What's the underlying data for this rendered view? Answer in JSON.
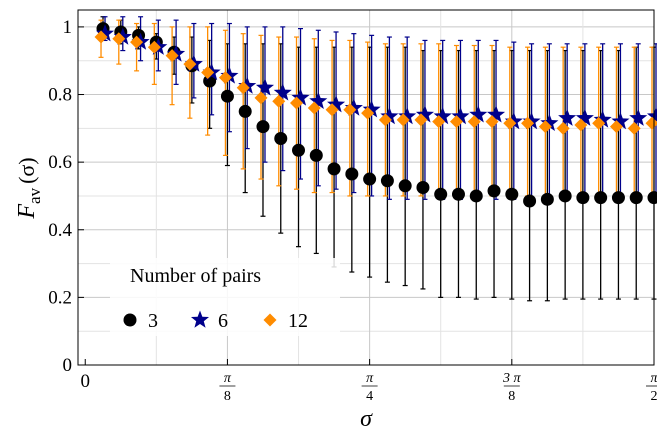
{
  "chart_data": {
    "type": "scatter",
    "xlabel": "σ",
    "ylabel_main": "F",
    "ylabel_sub": "av",
    "ylabel_arg": "(σ)",
    "xlim": [
      -0.02,
      1.5708
    ],
    "ylim": [
      0,
      1.05
    ],
    "grid": true,
    "y_ticks": [
      {
        "value": 0,
        "label": "0"
      },
      {
        "value": 0.2,
        "label": "0.2"
      },
      {
        "value": 0.4,
        "label": "0.4"
      },
      {
        "value": 0.6,
        "label": "0.6"
      },
      {
        "value": 0.8,
        "label": "0.8"
      },
      {
        "value": 1.0,
        "label": "1"
      }
    ],
    "x_ticks": [
      {
        "value": 0,
        "label": "0",
        "num": "",
        "den": ""
      },
      {
        "value": 0.3927,
        "label": "",
        "num": "π",
        "den": "8"
      },
      {
        "value": 0.7854,
        "label": "",
        "num": "π",
        "den": "4"
      },
      {
        "value": 1.1781,
        "label": "",
        "num": "3 π",
        "den": "8"
      },
      {
        "value": 1.5708,
        "label": "",
        "num": "π",
        "den": "2"
      }
    ],
    "legend": {
      "title": "Number of pairs",
      "placement": "bottom-left"
    },
    "x": [
      0.0491,
      0.0982,
      0.1473,
      0.1963,
      0.2454,
      0.2945,
      0.3436,
      0.3927,
      0.4418,
      0.4909,
      0.54,
      0.589,
      0.6381,
      0.6872,
      0.7363,
      0.7854,
      0.8345,
      0.8836,
      0.9327,
      0.9817,
      1.0308,
      1.0799,
      1.129,
      1.1781,
      1.2272,
      1.2763,
      1.3254,
      1.3744,
      1.4235,
      1.4726,
      1.5217,
      1.5708
    ],
    "series": [
      {
        "name": "3",
        "marker": "circle",
        "color": "#000000",
        "values": [
          0.995,
          0.985,
          0.975,
          0.955,
          0.925,
          0.885,
          0.84,
          0.795,
          0.75,
          0.705,
          0.67,
          0.635,
          0.62,
          0.58,
          0.565,
          0.55,
          0.545,
          0.53,
          0.525,
          0.505,
          0.505,
          0.5,
          0.515,
          0.505,
          0.485,
          0.49,
          0.5,
          0.495,
          0.495,
          0.495,
          0.495,
          0.495
        ],
        "err_low": [
          0.975,
          0.95,
          0.935,
          0.905,
          0.86,
          0.775,
          0.7,
          0.59,
          0.51,
          0.44,
          0.39,
          0.35,
          0.33,
          0.29,
          0.275,
          0.26,
          0.245,
          0.235,
          0.225,
          0.2,
          0.2,
          0.195,
          0.2,
          0.195,
          0.19,
          0.19,
          0.195,
          0.195,
          0.195,
          0.195,
          0.195,
          0.195
        ],
        "err_high": [
          1.03,
          1.02,
          1.0,
          0.98,
          0.97,
          0.97,
          0.96,
          0.95,
          0.95,
          0.95,
          0.95,
          0.94,
          0.94,
          0.94,
          0.94,
          0.94,
          0.94,
          0.94,
          0.93,
          0.93,
          0.93,
          0.93,
          0.93,
          0.93,
          0.93,
          0.93,
          0.93,
          0.93,
          0.93,
          0.93,
          0.94,
          0.94
        ]
      },
      {
        "name": "6",
        "marker": "star",
        "color": "#00008b",
        "values": [
          0.98,
          0.97,
          0.955,
          0.94,
          0.92,
          0.89,
          0.865,
          0.855,
          0.825,
          0.82,
          0.805,
          0.79,
          0.78,
          0.77,
          0.76,
          0.755,
          0.735,
          0.735,
          0.74,
          0.735,
          0.735,
          0.74,
          0.74,
          0.72,
          0.72,
          0.715,
          0.73,
          0.73,
          0.725,
          0.72,
          0.73,
          0.735
        ],
        "err_low": [
          0.96,
          0.93,
          0.9,
          0.87,
          0.83,
          0.79,
          0.74,
          0.69,
          0.64,
          0.6,
          0.575,
          0.55,
          0.53,
          0.52,
          0.51,
          0.5,
          0.49,
          0.49,
          0.49,
          0.49,
          0.49,
          0.49,
          0.49,
          0.49,
          0.49,
          0.49,
          0.49,
          0.49,
          0.49,
          0.49,
          0.49,
          0.49
        ],
        "err_high": [
          1.03,
          1.03,
          1.03,
          1.02,
          1.02,
          1.01,
          1.01,
          1.01,
          1.0,
          1.0,
          1.0,
          0.995,
          0.99,
          0.985,
          0.98,
          0.975,
          0.97,
          0.97,
          0.96,
          0.96,
          0.96,
          0.96,
          0.96,
          0.955,
          0.95,
          0.95,
          0.95,
          0.95,
          0.95,
          0.95,
          0.95,
          0.95
        ]
      },
      {
        "name": "12",
        "marker": "diamond",
        "color": "#ff8c00",
        "values": [
          0.97,
          0.965,
          0.955,
          0.94,
          0.915,
          0.89,
          0.865,
          0.85,
          0.82,
          0.79,
          0.78,
          0.775,
          0.76,
          0.755,
          0.755,
          0.745,
          0.725,
          0.725,
          0.725,
          0.72,
          0.72,
          0.72,
          0.72,
          0.715,
          0.715,
          0.705,
          0.7,
          0.71,
          0.715,
          0.705,
          0.7,
          0.715
        ],
        "err_low": [
          0.91,
          0.89,
          0.87,
          0.83,
          0.77,
          0.73,
          0.68,
          0.62,
          0.58,
          0.55,
          0.53,
          0.52,
          0.51,
          0.51,
          0.5,
          0.5,
          0.5,
          0.5,
          0.5,
          0.5,
          0.5,
          0.5,
          0.5,
          0.5,
          0.5,
          0.5,
          0.5,
          0.5,
          0.5,
          0.5,
          0.5,
          0.5
        ],
        "err_high": [
          1.02,
          1.02,
          1.01,
          1.01,
          1.0,
          1.0,
          1.0,
          0.99,
          0.98,
          0.975,
          0.97,
          0.97,
          0.965,
          0.96,
          0.96,
          0.955,
          0.95,
          0.95,
          0.95,
          0.95,
          0.945,
          0.945,
          0.945,
          0.94,
          0.94,
          0.94,
          0.94,
          0.94,
          0.94,
          0.94,
          0.94,
          0.94
        ]
      }
    ]
  }
}
